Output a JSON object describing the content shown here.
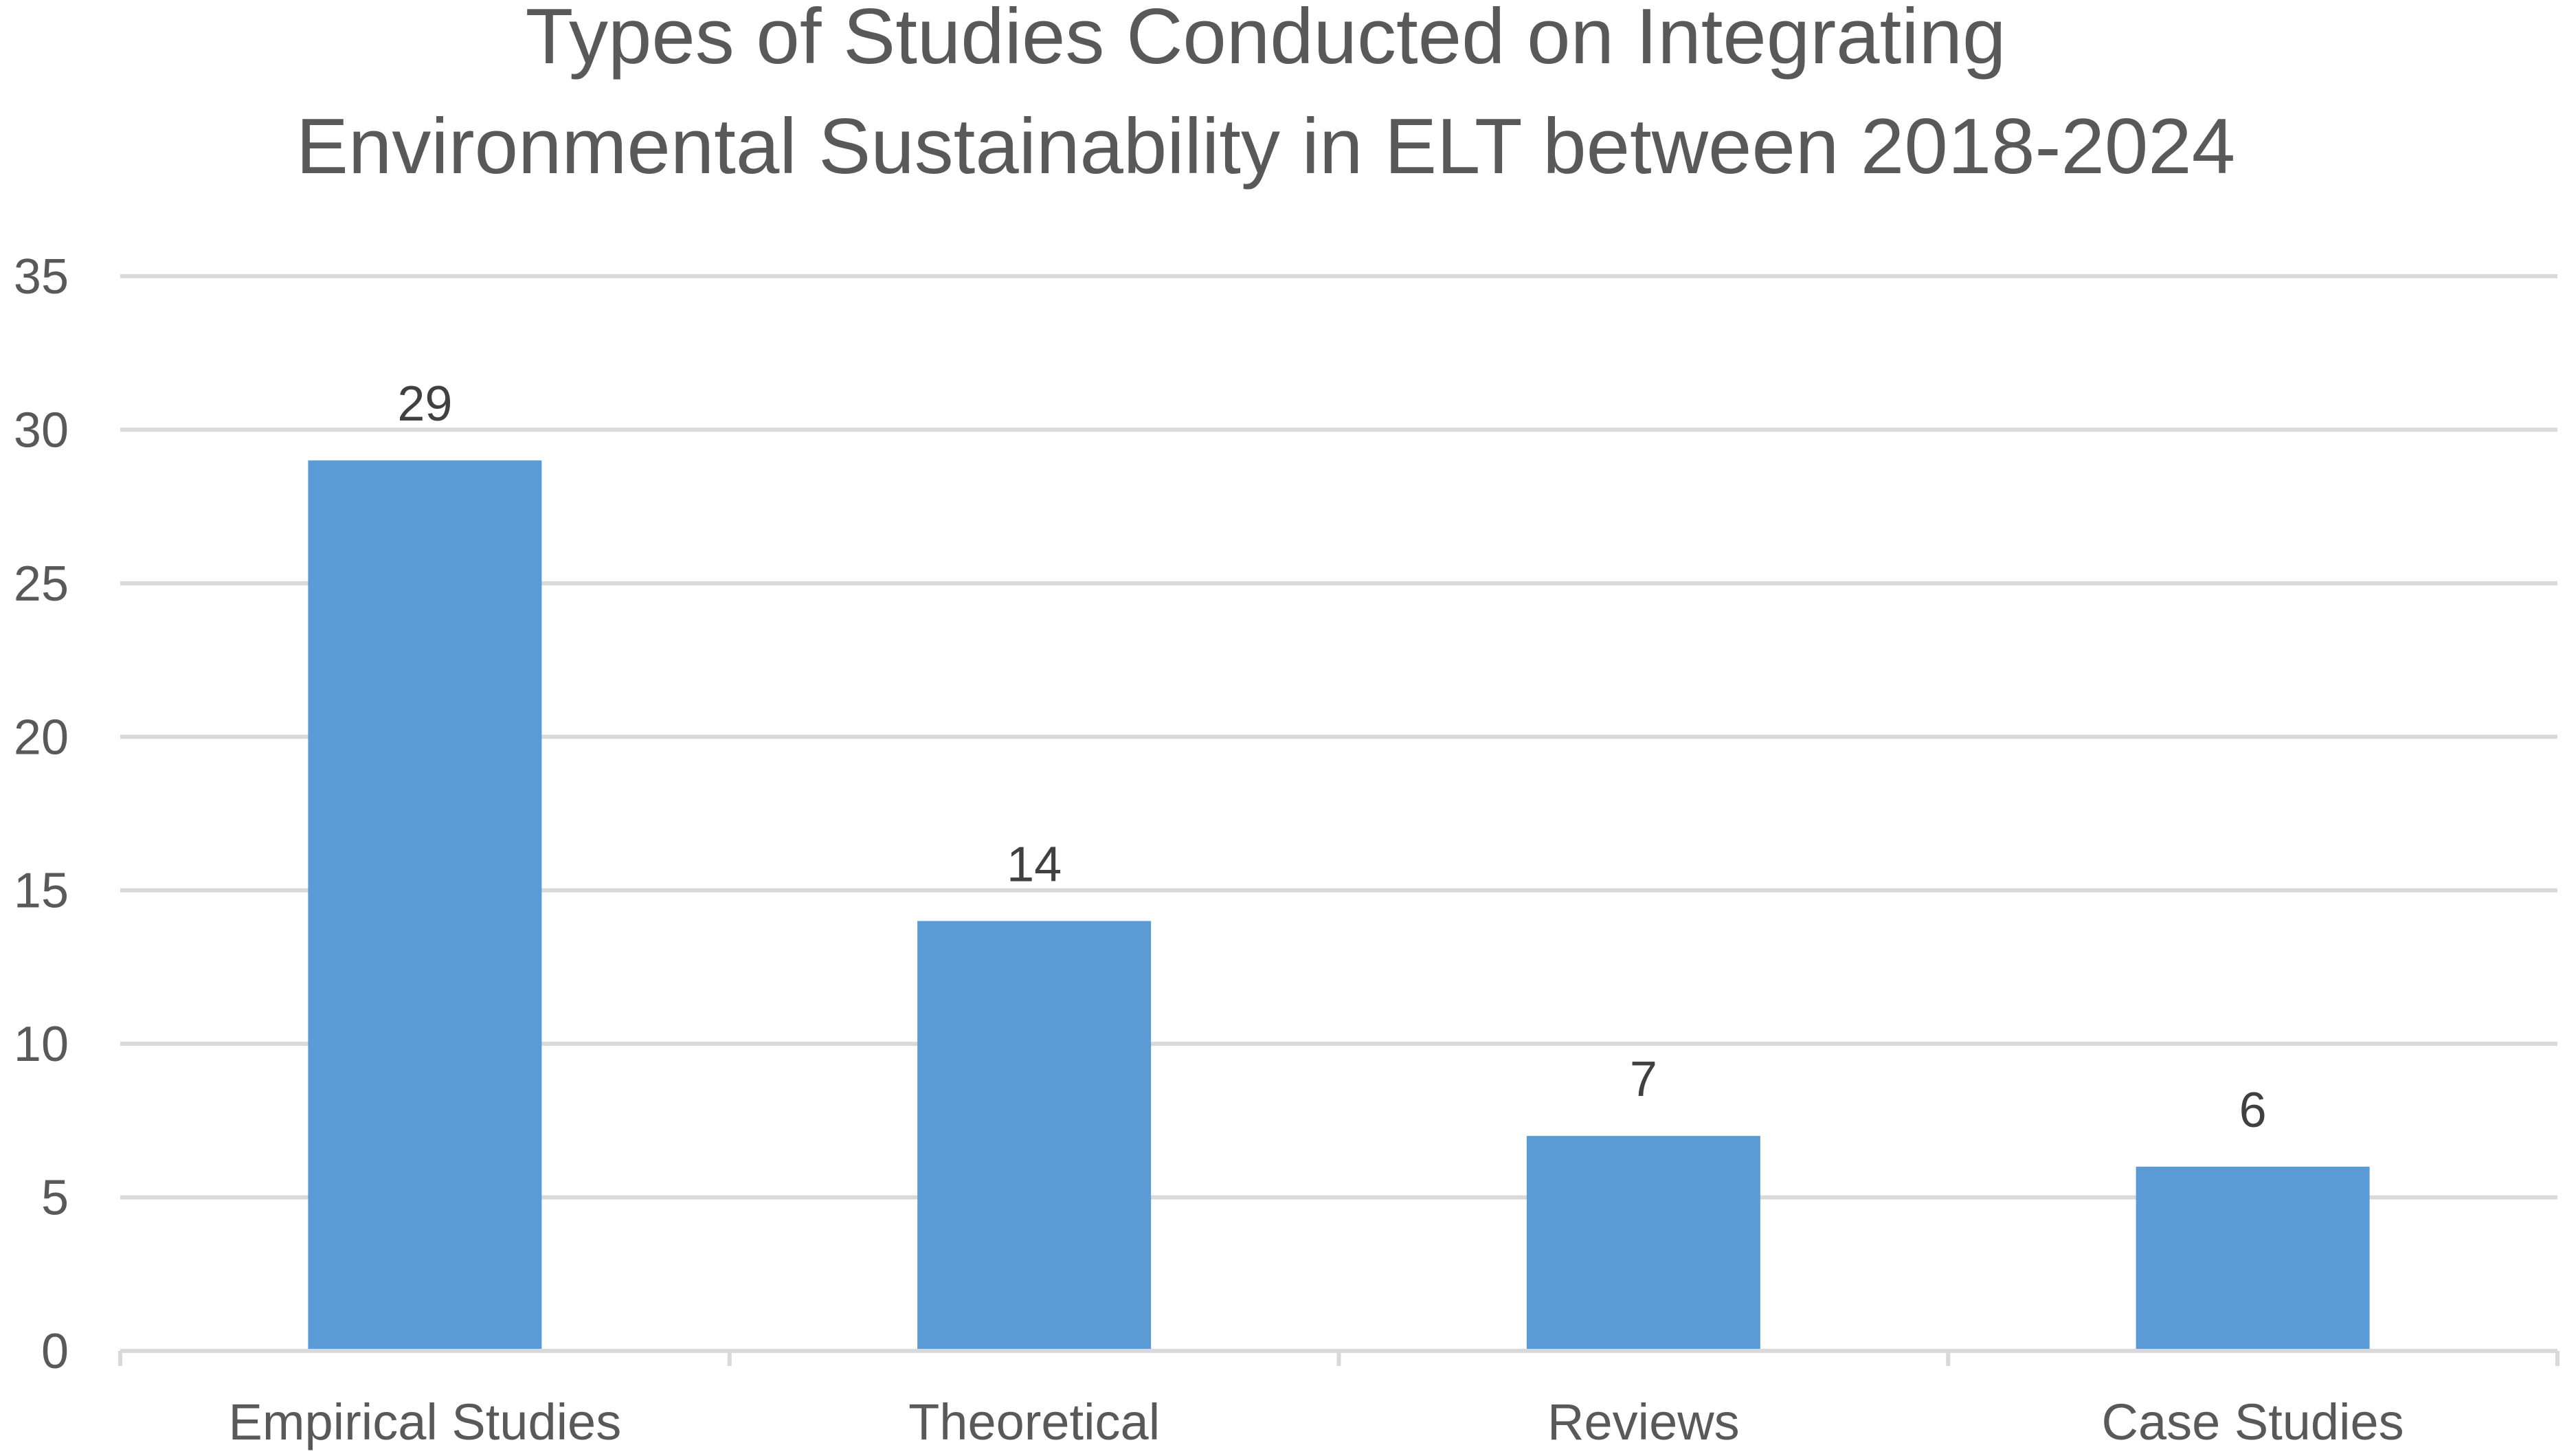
{
  "chart_data": {
    "type": "bar",
    "title_lines": [
      "Types of Studies Conducted on Integrating",
      "Environmental Sustainability in ELT between 2018-2024"
    ],
    "categories": [
      "Empirical Studies",
      "Theoretical",
      "Reviews",
      "Case Studies"
    ],
    "values": [
      29,
      14,
      7,
      6
    ],
    "data_labels": [
      "29",
      "14",
      "7",
      "6"
    ],
    "xlabel": "",
    "ylabel": "",
    "ylim": [
      0,
      35
    ],
    "y_ticks": [
      "0",
      "5",
      "10",
      "15",
      "20",
      "25",
      "30",
      "35"
    ],
    "grid": true,
    "legend": "none",
    "colors": {
      "bar": "#5B9BD5",
      "grid": "#D9D9D9",
      "axis": "#D9D9D9",
      "text": "#595959",
      "data_label": "#404040"
    }
  }
}
